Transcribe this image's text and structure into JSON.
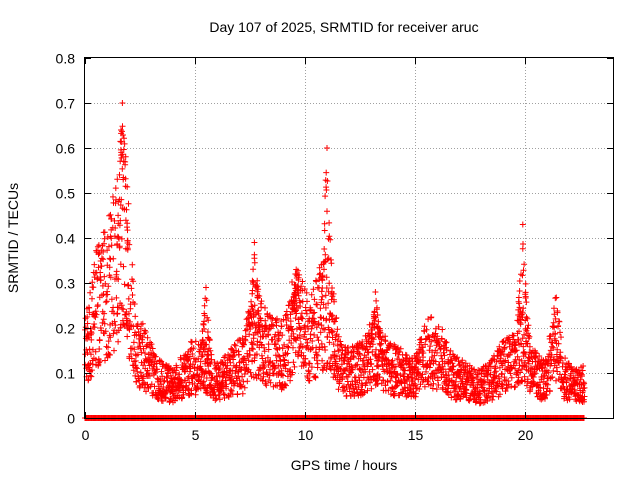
{
  "chart_data": {
    "type": "scatter",
    "title": "Day 107 of 2025, SRMTID for receiver aruc",
    "xlabel": "GPS time / hours",
    "ylabel": "SRMTID / TECUs",
    "xlim": [
      0,
      24
    ],
    "ylim": [
      0,
      0.8
    ],
    "xticks": [
      0,
      5,
      10,
      15,
      20
    ],
    "xtick_labels": [
      "0",
      "5",
      "10",
      "15",
      "20"
    ],
    "yticks": [
      0,
      0.1,
      0.2,
      0.3,
      0.4,
      0.5,
      0.6,
      0.7,
      0.8
    ],
    "ytick_labels": [
      "0",
      "0.1",
      "0.2",
      "0.3",
      "0.4",
      "0.5",
      "0.6",
      "0.7",
      "0.8"
    ],
    "grid": true,
    "marker": "plus",
    "color": "#ff0000",
    "x_end": 22.7,
    "peaks": [
      {
        "x": 1.7,
        "y": 0.7
      },
      {
        "x": 11.0,
        "y": 0.6
      },
      {
        "x": 19.9,
        "y": 0.43
      },
      {
        "x": 7.7,
        "y": 0.39
      },
      {
        "x": 9.6,
        "y": 0.33
      },
      {
        "x": 5.5,
        "y": 0.29
      },
      {
        "x": 13.2,
        "y": 0.28
      }
    ],
    "envelope": [
      [
        0.0,
        0.14
      ],
      [
        0.5,
        0.25
      ],
      [
        1.0,
        0.28
      ],
      [
        1.5,
        0.35
      ],
      [
        1.7,
        0.45
      ],
      [
        2.0,
        0.3
      ],
      [
        2.3,
        0.15
      ],
      [
        2.8,
        0.13
      ],
      [
        3.2,
        0.09
      ],
      [
        4.0,
        0.07
      ],
      [
        4.8,
        0.11
      ],
      [
        5.3,
        0.12
      ],
      [
        6.0,
        0.08
      ],
      [
        6.6,
        0.1
      ],
      [
        7.2,
        0.12
      ],
      [
        7.7,
        0.2
      ],
      [
        8.3,
        0.15
      ],
      [
        9.0,
        0.14
      ],
      [
        9.6,
        0.22
      ],
      [
        10.2,
        0.17
      ],
      [
        10.7,
        0.22
      ],
      [
        11.1,
        0.25
      ],
      [
        11.5,
        0.12
      ],
      [
        12.0,
        0.1
      ],
      [
        12.6,
        0.11
      ],
      [
        13.1,
        0.15
      ],
      [
        13.6,
        0.12
      ],
      [
        14.3,
        0.1
      ],
      [
        15.0,
        0.09
      ],
      [
        15.6,
        0.15
      ],
      [
        16.2,
        0.13
      ],
      [
        16.8,
        0.09
      ],
      [
        17.3,
        0.08
      ],
      [
        17.9,
        0.07
      ],
      [
        18.4,
        0.08
      ],
      [
        18.9,
        0.11
      ],
      [
        19.4,
        0.12
      ],
      [
        19.9,
        0.18
      ],
      [
        20.4,
        0.1
      ],
      [
        20.9,
        0.08
      ],
      [
        21.4,
        0.18
      ],
      [
        21.8,
        0.09
      ],
      [
        22.2,
        0.07
      ],
      [
        22.7,
        0.08
      ]
    ]
  }
}
